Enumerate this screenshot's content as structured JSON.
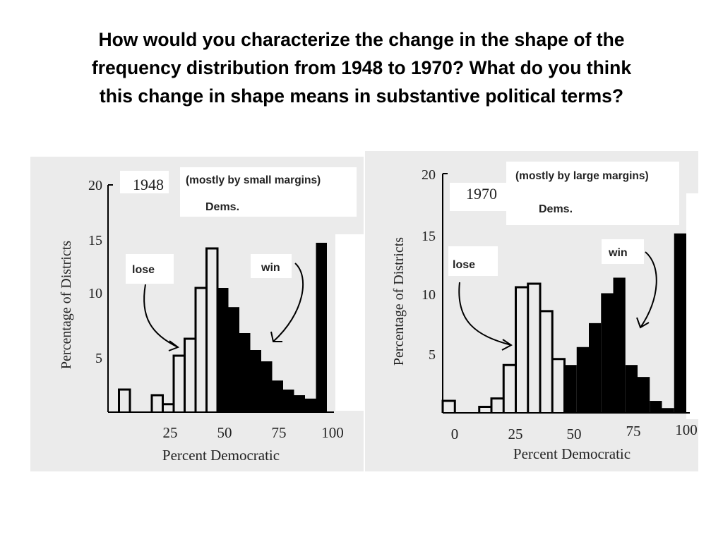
{
  "question": {
    "line1": "How would you characterize the change in the shape of the",
    "line2": "frequency distribution from 1948 to 1970?  What do you think",
    "line3": "this change in shape means in substantive political terms?"
  },
  "colors": {
    "background": "#ffffff",
    "panel": "#ebebeb",
    "white_label": "#ffffff",
    "ink": "#000000",
    "text": "#222222"
  },
  "chart_data": [
    {
      "type": "bar",
      "year_label": "1948",
      "annotations": {
        "margins": "(mostly by small margins)",
        "party": "Dems.",
        "lose": "lose",
        "win": "win"
      },
      "xlabel": "Percent Democratic",
      "ylabel": "Percentage of Districts",
      "xlim": [
        0,
        100
      ],
      "ylim": [
        0,
        20
      ],
      "x_ticks": [
        25,
        50,
        75,
        100
      ],
      "y_ticks": [
        5,
        10,
        15,
        20
      ],
      "bin_width": 5,
      "bins": [
        {
          "x": 5,
          "value": 2,
          "fill": "open"
        },
        {
          "x": 20,
          "value": 1.5,
          "fill": "open"
        },
        {
          "x": 25,
          "value": 0.7,
          "fill": "open"
        },
        {
          "x": 30,
          "value": 5,
          "fill": "open"
        },
        {
          "x": 35,
          "value": 6.5,
          "fill": "open"
        },
        {
          "x": 40,
          "value": 11,
          "fill": "open"
        },
        {
          "x": 45,
          "value": 14.5,
          "fill": "open"
        },
        {
          "x": 50,
          "value": 11,
          "fill": "solid"
        },
        {
          "x": 55,
          "value": 9.3,
          "fill": "solid"
        },
        {
          "x": 60,
          "value": 7,
          "fill": "solid"
        },
        {
          "x": 65,
          "value": 5.5,
          "fill": "solid"
        },
        {
          "x": 70,
          "value": 4.5,
          "fill": "solid"
        },
        {
          "x": 75,
          "value": 2.8,
          "fill": "solid"
        },
        {
          "x": 80,
          "value": 2,
          "fill": "solid"
        },
        {
          "x": 85,
          "value": 1.5,
          "fill": "solid"
        },
        {
          "x": 90,
          "value": 1.2,
          "fill": "solid"
        },
        {
          "x": 95,
          "value": 15,
          "fill": "solid"
        }
      ]
    },
    {
      "type": "bar",
      "year_label": "1970",
      "annotations": {
        "margins": "(mostly by large margins)",
        "party": "Dems.",
        "lose": "lose",
        "win": "win"
      },
      "xlabel": "Percent Democratic",
      "ylabel": "Percentage of Districts",
      "xlim": [
        0,
        100
      ],
      "ylim": [
        0,
        20
      ],
      "x_ticks": [
        0,
        25,
        50,
        75,
        100
      ],
      "y_ticks": [
        5,
        10,
        15,
        20
      ],
      "bin_width": 5,
      "bins": [
        {
          "x": 0,
          "value": 1,
          "fill": "open"
        },
        {
          "x": 15,
          "value": 0.5,
          "fill": "open"
        },
        {
          "x": 20,
          "value": 1.2,
          "fill": "open"
        },
        {
          "x": 25,
          "value": 4,
          "fill": "open"
        },
        {
          "x": 30,
          "value": 10.5,
          "fill": "open"
        },
        {
          "x": 35,
          "value": 10.8,
          "fill": "open"
        },
        {
          "x": 40,
          "value": 8.5,
          "fill": "open"
        },
        {
          "x": 45,
          "value": 4.5,
          "fill": "open"
        },
        {
          "x": 50,
          "value": 4,
          "fill": "solid"
        },
        {
          "x": 55,
          "value": 5.5,
          "fill": "solid"
        },
        {
          "x": 60,
          "value": 7.5,
          "fill": "solid"
        },
        {
          "x": 65,
          "value": 10,
          "fill": "solid"
        },
        {
          "x": 70,
          "value": 11.3,
          "fill": "solid"
        },
        {
          "x": 75,
          "value": 4,
          "fill": "solid"
        },
        {
          "x": 80,
          "value": 3,
          "fill": "solid"
        },
        {
          "x": 85,
          "value": 1,
          "fill": "solid"
        },
        {
          "x": 90,
          "value": 0.4,
          "fill": "solid"
        },
        {
          "x": 95,
          "value": 15,
          "fill": "solid"
        }
      ]
    }
  ]
}
